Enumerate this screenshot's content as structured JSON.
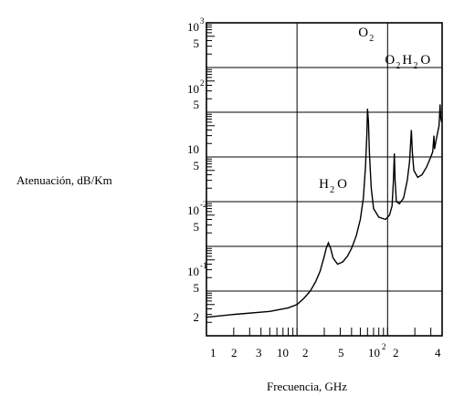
{
  "chart_data": {
    "type": "line",
    "title": "",
    "xlabel": "Frecuencia, GHz",
    "ylabel": "Atenuación, dB/Km",
    "x_scale": "log",
    "y_scale": "log",
    "xlim": [
      1,
      400
    ],
    "ylim": [
      0.0001,
      1000
    ],
    "x_tick_labels": [
      "1",
      "2",
      "3",
      "10",
      "2",
      "5",
      "10",
      "2",
      "4"
    ],
    "x_tick_exponents": [
      "",
      "",
      "",
      "",
      "",
      "",
      "2",
      "",
      ""
    ],
    "y_tick_labels": [
      {
        "base": "10",
        "exp": "3"
      },
      {
        "base": "5",
        "exp": ""
      },
      {
        "base": "10",
        "exp": "2"
      },
      {
        "base": "5",
        "exp": ""
      },
      {
        "base": "10",
        "exp": ""
      },
      {
        "base": "5",
        "exp": ""
      },
      {
        "base": "10",
        "exp": "-2"
      },
      {
        "base": "5",
        "exp": ""
      },
      {
        "base": "10",
        "exp": "-1"
      },
      {
        "base": "5",
        "exp": ""
      },
      {
        "base": "2",
        "exp": ""
      }
    ],
    "annotations": [
      {
        "text": "H",
        "sub": "2",
        "text2": "O",
        "x": 22,
        "y": 0.2
      },
      {
        "text": "O",
        "sub": "2",
        "text2": "",
        "x": 60,
        "y": 500
      },
      {
        "text": "O",
        "sub": "2",
        "text2": "",
        "x": 118,
        "y": 120
      },
      {
        "text": "H",
        "sub": "2",
        "text2": "O",
        "x": 183,
        "y": 120
      }
    ],
    "grid": true,
    "series": [
      {
        "values": [
          [
            1,
            0.00026
          ],
          [
            2,
            0.0003
          ],
          [
            5,
            0.00035
          ],
          [
            8,
            0.00042
          ],
          [
            10,
            0.0005
          ],
          [
            12,
            0.0007
          ],
          [
            14,
            0.001
          ],
          [
            16,
            0.0016
          ],
          [
            18,
            0.0028
          ],
          [
            20,
            0.006
          ],
          [
            21,
            0.009
          ],
          [
            22.2,
            0.012
          ],
          [
            23.5,
            0.009
          ],
          [
            25,
            0.0055
          ],
          [
            28,
            0.004
          ],
          [
            32,
            0.0045
          ],
          [
            36,
            0.006
          ],
          [
            40,
            0.009
          ],
          [
            45,
            0.017
          ],
          [
            50,
            0.04
          ],
          [
            54,
            0.12
          ],
          [
            57,
            0.6
          ],
          [
            59,
            3
          ],
          [
            60,
            12
          ],
          [
            61.5,
            6
          ],
          [
            63,
            1.2
          ],
          [
            66,
            0.2
          ],
          [
            70,
            0.07
          ],
          [
            80,
            0.045
          ],
          [
            95,
            0.04
          ],
          [
            105,
            0.05
          ],
          [
            112,
            0.08
          ],
          [
            116,
            0.3
          ],
          [
            118.7,
            1.2
          ],
          [
            121,
            0.3
          ],
          [
            125,
            0.1
          ],
          [
            135,
            0.09
          ],
          [
            150,
            0.12
          ],
          [
            165,
            0.3
          ],
          [
            175,
            0.8
          ],
          [
            183,
            4
          ],
          [
            188,
            1.2
          ],
          [
            195,
            0.5
          ],
          [
            215,
            0.35
          ],
          [
            240,
            0.4
          ],
          [
            270,
            0.6
          ],
          [
            300,
            1
          ],
          [
            315,
            1.3
          ],
          [
            325,
            3
          ],
          [
            330,
            1.5
          ],
          [
            345,
            2.5
          ],
          [
            370,
            5
          ],
          [
            380,
            15
          ],
          [
            385,
            8
          ],
          [
            395,
            6
          ],
          [
            400,
            6.5
          ]
        ]
      }
    ]
  }
}
